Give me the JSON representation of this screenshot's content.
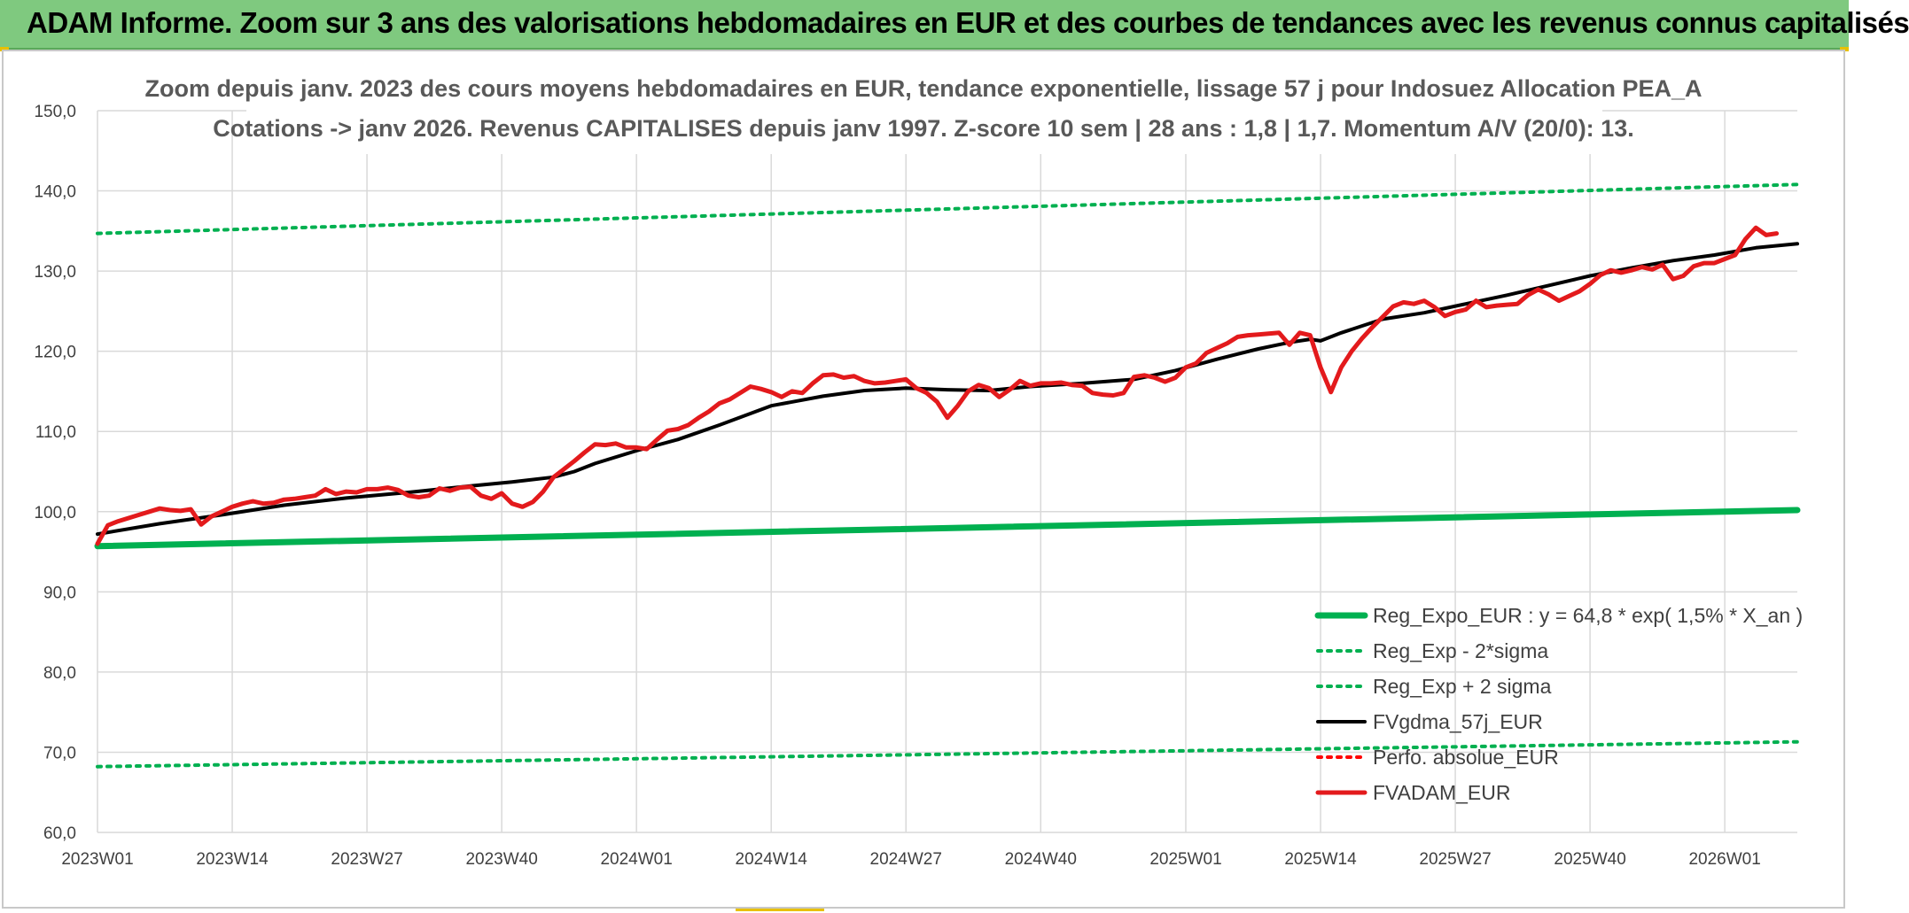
{
  "header": {
    "title": "ADAM Informe. Zoom sur 3 ans des valorisations hebdomadaires en EUR et des courbes de tendances avec les revenus connus capitalisés"
  },
  "chart_data": {
    "type": "line",
    "title": "Zoom depuis janv. 2023 des cours moyens hebdomadaires en EUR, tendance exponentielle, lissage 57 j pour Indosuez Allocation PEA_A",
    "subtitle": "Cotations -> janv 2026. Revenus CAPITALISES depuis janv 1997. Z-score 10 sem | 28 ans : 1,8 | 1,7. Momentum A/V (20/0): 13.",
    "xlabel": "",
    "ylabel": "",
    "ylim": [
      60,
      150
    ],
    "y_ticks": [
      "60,0",
      "70,0",
      "80,0",
      "90,0",
      "100,0",
      "110,0",
      "120,0",
      "130,0",
      "140,0",
      "150,0"
    ],
    "x_range": [
      0,
      164
    ],
    "x_ticks": [
      {
        "label": "2023W01",
        "week": 0
      },
      {
        "label": "2023W14",
        "week": 13
      },
      {
        "label": "2023W27",
        "week": 26
      },
      {
        "label": "2023W40",
        "week": 39
      },
      {
        "label": "2024W01",
        "week": 52
      },
      {
        "label": "2024W14",
        "week": 65
      },
      {
        "label": "2024W27",
        "week": 78
      },
      {
        "label": "2024W40",
        "week": 91
      },
      {
        "label": "2025W01",
        "week": 105
      },
      {
        "label": "2025W14",
        "week": 118
      },
      {
        "label": "2025W27",
        "week": 131
      },
      {
        "label": "2025W40",
        "week": 144
      },
      {
        "label": "2026W01",
        "week": 157
      }
    ],
    "grid": true,
    "legend_position": "bottom-right",
    "series": [
      {
        "name": "Reg_Expo_EUR : y = 64,8 * exp( 1,5% * X_an )",
        "color": "#00b050",
        "style": "thick",
        "points": [
          [
            0,
            95.7
          ],
          [
            164,
            100.2
          ]
        ]
      },
      {
        "name": "Reg_Exp - 2*sigma",
        "color": "#00b050",
        "style": "dotted",
        "points": [
          [
            0,
            68.2
          ],
          [
            164,
            71.3
          ]
        ]
      },
      {
        "name": "Reg_Exp + 2 sigma",
        "color": "#00b050",
        "style": "dotted",
        "points": [
          [
            0,
            134.7
          ],
          [
            164,
            140.8
          ]
        ]
      },
      {
        "name": "FVgdma_57j_EUR",
        "color": "#000000",
        "style": "solid",
        "points": [
          [
            0,
            97.2
          ],
          [
            6,
            98.5
          ],
          [
            12,
            99.6
          ],
          [
            18,
            100.8
          ],
          [
            24,
            101.7
          ],
          [
            30,
            102.4
          ],
          [
            36,
            103.2
          ],
          [
            40,
            103.7
          ],
          [
            44,
            104.3
          ],
          [
            46,
            105.0
          ],
          [
            48,
            106.0
          ],
          [
            52,
            107.6
          ],
          [
            56,
            109.0
          ],
          [
            60,
            110.8
          ],
          [
            65,
            113.2
          ],
          [
            70,
            114.4
          ],
          [
            74,
            115.1
          ],
          [
            78,
            115.4
          ],
          [
            82,
            115.2
          ],
          [
            86,
            115.1
          ],
          [
            90,
            115.6
          ],
          [
            95,
            116.0
          ],
          [
            100,
            116.5
          ],
          [
            104,
            117.6
          ],
          [
            108,
            119.0
          ],
          [
            112,
            120.3
          ],
          [
            115,
            121.1
          ],
          [
            117,
            121.5
          ],
          [
            118,
            121.3
          ],
          [
            120,
            122.3
          ],
          [
            124,
            124.0
          ],
          [
            128,
            124.8
          ],
          [
            132,
            125.9
          ],
          [
            136,
            127.0
          ],
          [
            140,
            128.2
          ],
          [
            144,
            129.4
          ],
          [
            148,
            130.4
          ],
          [
            152,
            131.3
          ],
          [
            156,
            132.0
          ],
          [
            160,
            132.9
          ],
          [
            164,
            133.4
          ]
        ]
      },
      {
        "name": "Perfo. absolue_EUR",
        "color": "#ff0000",
        "style": "dotted",
        "points": []
      },
      {
        "name": "FVADAM_EUR",
        "color": "#e31a1c",
        "style": "thick",
        "points": [
          [
            0,
            96.0
          ],
          [
            1,
            98.3
          ],
          [
            2,
            98.8
          ],
          [
            3,
            99.2
          ],
          [
            4,
            99.6
          ],
          [
            5,
            100.0
          ],
          [
            6,
            100.4
          ],
          [
            7,
            100.2
          ],
          [
            8,
            100.1
          ],
          [
            9,
            100.3
          ],
          [
            10,
            98.4
          ],
          [
            11,
            99.4
          ],
          [
            12,
            100.0
          ],
          [
            13,
            100.6
          ],
          [
            14,
            101.0
          ],
          [
            15,
            101.3
          ],
          [
            16,
            101.0
          ],
          [
            17,
            101.1
          ],
          [
            18,
            101.5
          ],
          [
            19,
            101.6
          ],
          [
            20,
            101.8
          ],
          [
            21,
            102.0
          ],
          [
            22,
            102.8
          ],
          [
            23,
            102.2
          ],
          [
            24,
            102.5
          ],
          [
            25,
            102.4
          ],
          [
            26,
            102.8
          ],
          [
            27,
            102.8
          ],
          [
            28,
            103.0
          ],
          [
            29,
            102.7
          ],
          [
            30,
            102.0
          ],
          [
            31,
            101.8
          ],
          [
            32,
            102.0
          ],
          [
            33,
            102.9
          ],
          [
            34,
            102.6
          ],
          [
            35,
            103.0
          ],
          [
            36,
            103.1
          ],
          [
            37,
            102.0
          ],
          [
            38,
            101.6
          ],
          [
            39,
            102.3
          ],
          [
            40,
            101.0
          ],
          [
            41,
            100.6
          ],
          [
            42,
            101.2
          ],
          [
            43,
            102.5
          ],
          [
            44,
            104.3
          ],
          [
            45,
            105.3
          ],
          [
            46,
            106.3
          ],
          [
            47,
            107.4
          ],
          [
            48,
            108.4
          ],
          [
            49,
            108.3
          ],
          [
            50,
            108.5
          ],
          [
            51,
            108.0
          ],
          [
            52,
            108.0
          ],
          [
            53,
            107.8
          ],
          [
            54,
            109.0
          ],
          [
            55,
            110.1
          ],
          [
            56,
            110.3
          ],
          [
            57,
            110.8
          ],
          [
            58,
            111.7
          ],
          [
            59,
            112.5
          ],
          [
            60,
            113.5
          ],
          [
            61,
            114.0
          ],
          [
            62,
            114.8
          ],
          [
            63,
            115.6
          ],
          [
            64,
            115.3
          ],
          [
            65,
            114.9
          ],
          [
            66,
            114.3
          ],
          [
            67,
            115.0
          ],
          [
            68,
            114.8
          ],
          [
            69,
            116.0
          ],
          [
            70,
            117.0
          ],
          [
            71,
            117.1
          ],
          [
            72,
            116.7
          ],
          [
            73,
            116.9
          ],
          [
            74,
            116.3
          ],
          [
            75,
            116.0
          ],
          [
            76,
            116.1
          ],
          [
            77,
            116.3
          ],
          [
            78,
            116.5
          ],
          [
            79,
            115.4
          ],
          [
            80,
            114.8
          ],
          [
            81,
            113.7
          ],
          [
            82,
            111.7
          ],
          [
            83,
            113.2
          ],
          [
            84,
            115.0
          ],
          [
            85,
            115.8
          ],
          [
            86,
            115.4
          ],
          [
            87,
            114.3
          ],
          [
            88,
            115.2
          ],
          [
            89,
            116.3
          ],
          [
            90,
            115.7
          ],
          [
            91,
            116.0
          ],
          [
            92,
            116.0
          ],
          [
            93,
            116.1
          ],
          [
            94,
            115.8
          ],
          [
            95,
            115.7
          ],
          [
            96,
            114.8
          ],
          [
            97,
            114.6
          ],
          [
            98,
            114.5
          ],
          [
            99,
            114.8
          ],
          [
            100,
            116.8
          ],
          [
            101,
            117.0
          ],
          [
            102,
            116.7
          ],
          [
            103,
            116.2
          ],
          [
            104,
            116.7
          ],
          [
            105,
            118.0
          ],
          [
            106,
            118.5
          ],
          [
            107,
            119.8
          ],
          [
            108,
            120.4
          ],
          [
            109,
            121.0
          ],
          [
            110,
            121.8
          ],
          [
            111,
            122.0
          ],
          [
            112,
            122.1
          ],
          [
            113,
            122.2
          ],
          [
            114,
            122.3
          ],
          [
            115,
            120.8
          ],
          [
            116,
            122.3
          ],
          [
            117,
            122.0
          ],
          [
            118,
            118.0
          ],
          [
            119,
            114.9
          ],
          [
            120,
            118.0
          ],
          [
            121,
            120.0
          ],
          [
            122,
            121.6
          ],
          [
            123,
            123.0
          ],
          [
            124,
            124.3
          ],
          [
            125,
            125.6
          ],
          [
            126,
            126.1
          ],
          [
            127,
            125.9
          ],
          [
            128,
            126.3
          ],
          [
            129,
            125.5
          ],
          [
            130,
            124.4
          ],
          [
            131,
            124.9
          ],
          [
            132,
            125.2
          ],
          [
            133,
            126.3
          ],
          [
            134,
            125.5
          ],
          [
            135,
            125.7
          ],
          [
            136,
            125.8
          ],
          [
            137,
            125.9
          ],
          [
            138,
            127.0
          ],
          [
            139,
            127.7
          ],
          [
            140,
            127.1
          ],
          [
            141,
            126.3
          ],
          [
            142,
            126.9
          ],
          [
            143,
            127.5
          ],
          [
            144,
            128.4
          ],
          [
            145,
            129.5
          ],
          [
            146,
            130.1
          ],
          [
            147,
            129.8
          ],
          [
            148,
            130.1
          ],
          [
            149,
            130.5
          ],
          [
            150,
            130.2
          ],
          [
            151,
            130.8
          ],
          [
            152,
            129.0
          ],
          [
            153,
            129.4
          ],
          [
            154,
            130.6
          ],
          [
            155,
            131.0
          ],
          [
            156,
            131.0
          ],
          [
            157,
            131.5
          ],
          [
            158,
            132.0
          ],
          [
            159,
            134.0
          ],
          [
            160,
            135.4
          ],
          [
            161,
            134.5
          ],
          [
            162,
            134.7
          ]
        ]
      }
    ]
  }
}
